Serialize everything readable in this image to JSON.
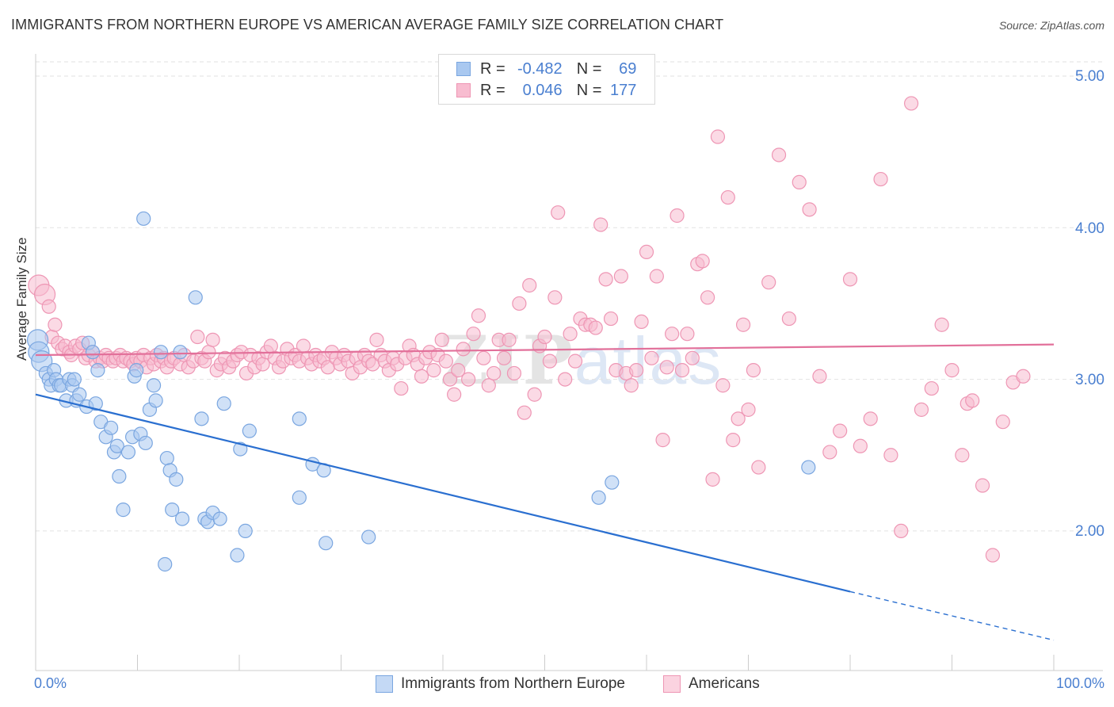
{
  "title": "IMMIGRANTS FROM NORTHERN EUROPE VS AMERICAN AVERAGE FAMILY SIZE CORRELATION CHART",
  "source": "Source: ZipAtlas.com",
  "watermark": {
    "zip": "ZIP",
    "atlas": "atlas"
  },
  "colors": {
    "blue_fill": "#a9c8f0",
    "blue_stroke": "#7aa6e0",
    "blue_line": "#2a6fd0",
    "pink_fill": "#f8bcd0",
    "pink_stroke": "#ee96b4",
    "pink_line": "#e2709a",
    "tick_text": "#4a7fd0"
  },
  "legend": {
    "rows": [
      {
        "r_label": "R =",
        "r_value": "-0.482",
        "n_label": "N =",
        "n_value": "69"
      },
      {
        "r_label": "R =",
        "r_value": "0.046",
        "n_label": "N =",
        "n_value": "177"
      }
    ]
  },
  "chart_data": {
    "type": "scatter",
    "title": "IMMIGRANTS FROM NORTHERN EUROPE VS AMERICAN AVERAGE FAMILY SIZE CORRELATION CHART",
    "xlabel": "",
    "ylabel": "Average Family Size",
    "xlim": [
      0,
      100
    ],
    "ylim": [
      1.06,
      5.1
    ],
    "x_tick_labels": [
      "0.0%",
      "100.0%"
    ],
    "y_ticks": [
      2.0,
      3.0,
      4.0,
      5.0
    ],
    "y_tick_labels": [
      "2.00",
      "3.00",
      "4.00",
      "5.00"
    ],
    "grid": true,
    "legend_position": "bottom",
    "series": [
      {
        "name": "Immigrants from Northern Europe",
        "color": "#a9c8f0",
        "trend": {
          "x0": 0,
          "y0": 2.9,
          "x1": 80,
          "y1": 1.6,
          "dashed_to_x": 100,
          "dashed_to_y": 1.28
        },
        "points": [
          [
            0.2,
            3.26
          ],
          [
            0.3,
            3.18
          ],
          [
            0.6,
            3.12
          ],
          [
            1.0,
            3.04
          ],
          [
            1.3,
            3.0
          ],
          [
            1.5,
            2.96
          ],
          [
            1.8,
            3.06
          ],
          [
            2.0,
            3.0
          ],
          [
            2.3,
            2.96
          ],
          [
            2.5,
            2.96
          ],
          [
            3.0,
            2.86
          ],
          [
            3.3,
            3.0
          ],
          [
            3.6,
            2.96
          ],
          [
            3.8,
            3.0
          ],
          [
            4.0,
            2.86
          ],
          [
            4.3,
            2.9
          ],
          [
            5.0,
            2.82
          ],
          [
            5.2,
            3.24
          ],
          [
            5.6,
            3.18
          ],
          [
            5.9,
            2.84
          ],
          [
            6.1,
            3.06
          ],
          [
            6.4,
            2.72
          ],
          [
            6.9,
            2.62
          ],
          [
            7.4,
            2.68
          ],
          [
            7.7,
            2.52
          ],
          [
            8.0,
            2.56
          ],
          [
            8.2,
            2.36
          ],
          [
            8.6,
            2.14
          ],
          [
            9.1,
            2.52
          ],
          [
            9.5,
            2.62
          ],
          [
            9.7,
            3.02
          ],
          [
            9.9,
            3.06
          ],
          [
            10.3,
            2.64
          ],
          [
            10.6,
            4.06
          ],
          [
            10.8,
            2.58
          ],
          [
            11.2,
            2.8
          ],
          [
            11.6,
            2.96
          ],
          [
            11.8,
            2.86
          ],
          [
            12.3,
            3.18
          ],
          [
            12.7,
            1.78
          ],
          [
            12.9,
            2.48
          ],
          [
            13.2,
            2.4
          ],
          [
            13.4,
            2.14
          ],
          [
            13.8,
            2.34
          ],
          [
            14.2,
            3.18
          ],
          [
            14.4,
            2.08
          ],
          [
            15.7,
            3.54
          ],
          [
            16.3,
            2.74
          ],
          [
            16.6,
            2.08
          ],
          [
            16.9,
            2.06
          ],
          [
            17.4,
            2.12
          ],
          [
            18.1,
            2.08
          ],
          [
            18.5,
            2.84
          ],
          [
            19.8,
            1.84
          ],
          [
            20.1,
            2.54
          ],
          [
            20.6,
            2.0
          ],
          [
            21.0,
            2.66
          ],
          [
            25.9,
            2.74
          ],
          [
            25.9,
            2.22
          ],
          [
            27.2,
            2.44
          ],
          [
            28.3,
            2.4
          ],
          [
            28.5,
            1.92
          ],
          [
            32.7,
            1.96
          ],
          [
            55.3,
            2.22
          ],
          [
            56.6,
            2.32
          ],
          [
            75.9,
            2.42
          ]
        ]
      },
      {
        "name": "Americans",
        "color": "#f8bcd0",
        "trend": {
          "x0": 0,
          "y0": 3.16,
          "x1": 100,
          "y1": 3.23
        },
        "points": [
          [
            0.3,
            3.62
          ],
          [
            0.9,
            3.56
          ],
          [
            1.3,
            3.48
          ],
          [
            1.6,
            3.28
          ],
          [
            1.9,
            3.36
          ],
          [
            2.2,
            3.24
          ],
          [
            2.6,
            3.2
          ],
          [
            2.9,
            3.22
          ],
          [
            3.3,
            3.18
          ],
          [
            3.5,
            3.16
          ],
          [
            3.9,
            3.22
          ],
          [
            4.3,
            3.2
          ],
          [
            4.6,
            3.24
          ],
          [
            4.9,
            3.14
          ],
          [
            5.2,
            3.16
          ],
          [
            5.6,
            3.18
          ],
          [
            5.9,
            3.12
          ],
          [
            6.3,
            3.14
          ],
          [
            6.6,
            3.12
          ],
          [
            6.9,
            3.16
          ],
          [
            7.2,
            3.14
          ],
          [
            7.6,
            3.12
          ],
          [
            7.9,
            3.14
          ],
          [
            8.3,
            3.16
          ],
          [
            8.6,
            3.12
          ],
          [
            8.9,
            3.14
          ],
          [
            9.3,
            3.12
          ],
          [
            9.6,
            3.1
          ],
          [
            9.9,
            3.14
          ],
          [
            10.3,
            3.12
          ],
          [
            10.6,
            3.16
          ],
          [
            10.9,
            3.08
          ],
          [
            11.3,
            3.14
          ],
          [
            11.6,
            3.1
          ],
          [
            11.9,
            3.16
          ],
          [
            12.3,
            3.12
          ],
          [
            12.6,
            3.14
          ],
          [
            12.9,
            3.08
          ],
          [
            13.3,
            3.12
          ],
          [
            13.6,
            3.14
          ],
          [
            14.2,
            3.1
          ],
          [
            14.6,
            3.16
          ],
          [
            15.0,
            3.08
          ],
          [
            15.5,
            3.12
          ],
          [
            15.9,
            3.28
          ],
          [
            16.3,
            3.14
          ],
          [
            16.6,
            3.12
          ],
          [
            17.0,
            3.18
          ],
          [
            17.4,
            3.26
          ],
          [
            17.8,
            3.06
          ],
          [
            18.2,
            3.1
          ],
          [
            18.6,
            3.14
          ],
          [
            19.0,
            3.08
          ],
          [
            19.4,
            3.12
          ],
          [
            19.8,
            3.16
          ],
          [
            20.2,
            3.18
          ],
          [
            20.7,
            3.04
          ],
          [
            21.1,
            3.16
          ],
          [
            21.5,
            3.08
          ],
          [
            21.9,
            3.14
          ],
          [
            22.3,
            3.1
          ],
          [
            22.7,
            3.18
          ],
          [
            23.1,
            3.22
          ],
          [
            23.5,
            3.14
          ],
          [
            23.9,
            3.08
          ],
          [
            24.3,
            3.12
          ],
          [
            24.7,
            3.2
          ],
          [
            25.1,
            3.14
          ],
          [
            25.5,
            3.16
          ],
          [
            25.9,
            3.12
          ],
          [
            26.3,
            3.22
          ],
          [
            26.7,
            3.14
          ],
          [
            27.1,
            3.1
          ],
          [
            27.5,
            3.16
          ],
          [
            27.9,
            3.12
          ],
          [
            28.3,
            3.14
          ],
          [
            28.7,
            3.08
          ],
          [
            29.1,
            3.18
          ],
          [
            29.5,
            3.14
          ],
          [
            29.9,
            3.1
          ],
          [
            30.3,
            3.16
          ],
          [
            30.7,
            3.12
          ],
          [
            31.1,
            3.04
          ],
          [
            31.5,
            3.14
          ],
          [
            31.9,
            3.08
          ],
          [
            32.3,
            3.16
          ],
          [
            32.7,
            3.12
          ],
          [
            33.1,
            3.1
          ],
          [
            33.5,
            3.26
          ],
          [
            33.9,
            3.16
          ],
          [
            34.3,
            3.12
          ],
          [
            34.7,
            3.06
          ],
          [
            35.1,
            3.14
          ],
          [
            35.5,
            3.1
          ],
          [
            35.9,
            2.94
          ],
          [
            36.3,
            3.14
          ],
          [
            36.7,
            3.22
          ],
          [
            37.1,
            3.16
          ],
          [
            37.5,
            3.1
          ],
          [
            37.9,
            3.02
          ],
          [
            38.3,
            3.14
          ],
          [
            38.7,
            3.18
          ],
          [
            39.1,
            3.06
          ],
          [
            39.5,
            3.16
          ],
          [
            39.9,
            3.26
          ],
          [
            40.3,
            3.12
          ],
          [
            40.7,
            3.0
          ],
          [
            41.1,
            2.9
          ],
          [
            41.5,
            3.06
          ],
          [
            42.0,
            3.2
          ],
          [
            42.5,
            3.0
          ],
          [
            43.0,
            3.3
          ],
          [
            43.5,
            3.42
          ],
          [
            44.0,
            3.14
          ],
          [
            44.5,
            2.96
          ],
          [
            45.0,
            3.04
          ],
          [
            45.5,
            3.26
          ],
          [
            46.0,
            3.14
          ],
          [
            46.5,
            3.26
          ],
          [
            47.0,
            3.04
          ],
          [
            47.5,
            3.5
          ],
          [
            48.0,
            2.78
          ],
          [
            48.5,
            3.62
          ],
          [
            49.0,
            2.9
          ],
          [
            49.5,
            3.22
          ],
          [
            50.0,
            3.28
          ],
          [
            50.5,
            3.12
          ],
          [
            51.0,
            3.54
          ],
          [
            51.3,
            4.1
          ],
          [
            52.0,
            3.0
          ],
          [
            52.5,
            3.3
          ],
          [
            53.0,
            3.12
          ],
          [
            53.5,
            3.4
          ],
          [
            54.0,
            3.36
          ],
          [
            54.5,
            3.36
          ],
          [
            55.0,
            3.34
          ],
          [
            55.5,
            4.02
          ],
          [
            56.0,
            3.66
          ],
          [
            56.5,
            3.4
          ],
          [
            57.0,
            3.06
          ],
          [
            57.5,
            3.68
          ],
          [
            58.0,
            3.04
          ],
          [
            58.5,
            2.96
          ],
          [
            59.0,
            3.06
          ],
          [
            59.5,
            3.38
          ],
          [
            60.0,
            3.84
          ],
          [
            60.5,
            3.14
          ],
          [
            61.0,
            3.68
          ],
          [
            61.6,
            2.6
          ],
          [
            62.0,
            3.08
          ],
          [
            62.5,
            3.3
          ],
          [
            63.0,
            4.08
          ],
          [
            63.5,
            3.06
          ],
          [
            64.0,
            3.3
          ],
          [
            64.5,
            3.14
          ],
          [
            65.0,
            3.76
          ],
          [
            65.5,
            3.78
          ],
          [
            66.0,
            3.54
          ],
          [
            66.5,
            2.34
          ],
          [
            67.0,
            4.6
          ],
          [
            67.5,
            2.96
          ],
          [
            68.0,
            4.2
          ],
          [
            68.5,
            2.6
          ],
          [
            69.0,
            2.74
          ],
          [
            69.5,
            3.36
          ],
          [
            70.0,
            2.8
          ],
          [
            70.5,
            3.06
          ],
          [
            71.0,
            2.42
          ],
          [
            72.0,
            3.64
          ],
          [
            73.0,
            4.48
          ],
          [
            74.0,
            3.4
          ],
          [
            75.0,
            4.3
          ],
          [
            76.0,
            4.12
          ],
          [
            77.0,
            3.02
          ],
          [
            78.0,
            2.52
          ],
          [
            79.0,
            2.66
          ],
          [
            80.0,
            3.66
          ],
          [
            81.0,
            2.56
          ],
          [
            82.0,
            2.74
          ],
          [
            83.0,
            4.32
          ],
          [
            84.0,
            2.5
          ],
          [
            85.0,
            2.0
          ],
          [
            86.0,
            4.82
          ],
          [
            87.0,
            2.8
          ],
          [
            88.0,
            2.94
          ],
          [
            89.0,
            3.36
          ],
          [
            90.0,
            3.06
          ],
          [
            91.0,
            2.5
          ],
          [
            91.5,
            2.84
          ],
          [
            92.0,
            2.86
          ],
          [
            93.0,
            2.3
          ],
          [
            94.0,
            1.84
          ],
          [
            95.0,
            2.72
          ],
          [
            96.0,
            2.98
          ],
          [
            97.0,
            3.02
          ]
        ]
      }
    ]
  },
  "axis": {
    "ylabel": "Average Family Size",
    "y_ticks": [
      "5.00",
      "4.00",
      "3.00",
      "2.00"
    ],
    "x_left": "0.0%",
    "x_right": "100.0%"
  },
  "bottom_legend": [
    "Immigrants from Northern Europe",
    "Americans"
  ]
}
